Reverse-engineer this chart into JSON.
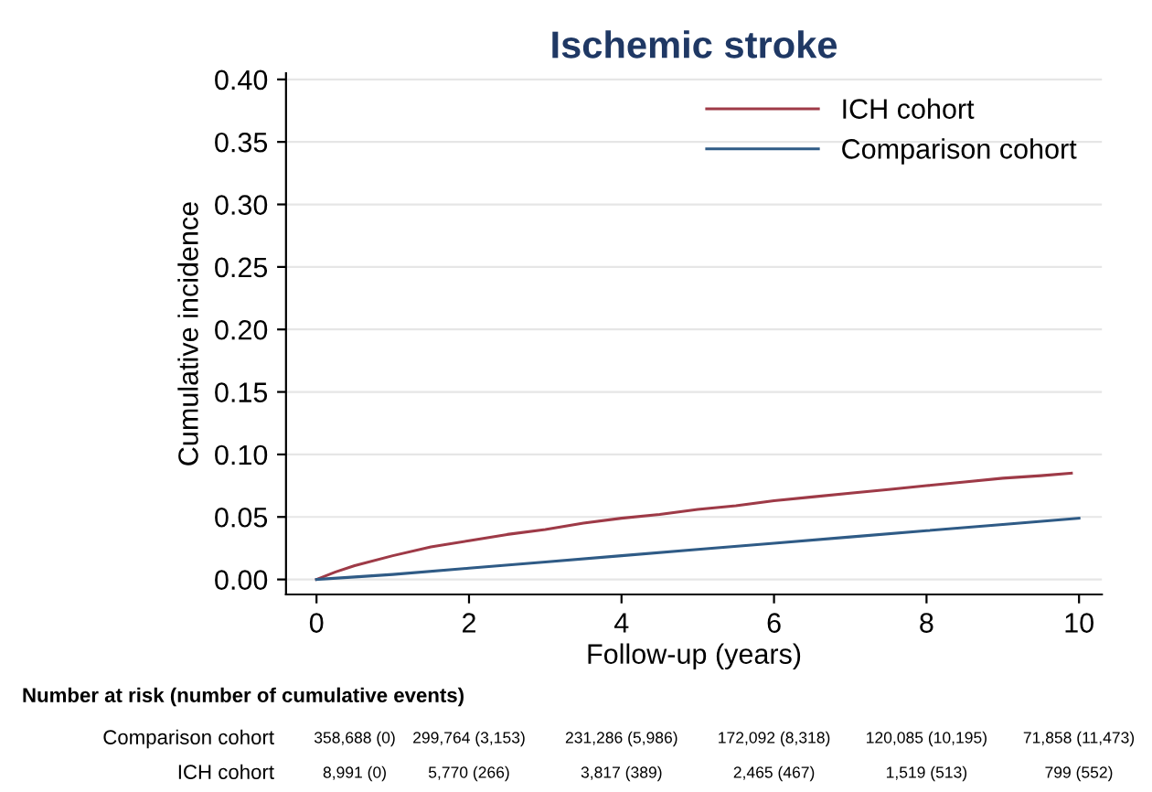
{
  "chart_data": {
    "type": "line",
    "title": "Ischemic stroke",
    "xlabel": "Follow-up (years)",
    "ylabel": "Cumulative incidence",
    "series": [
      {
        "name": "ICH cohort",
        "color": "#9e3a47",
        "x": [
          0,
          0.25,
          0.5,
          1,
          1.5,
          2,
          2.5,
          3,
          3.5,
          4,
          4.5,
          5,
          5.5,
          6,
          6.5,
          7,
          7.5,
          8,
          8.5,
          9,
          9.5,
          9.9
        ],
        "values": [
          0,
          0.006,
          0.011,
          0.019,
          0.026,
          0.031,
          0.036,
          0.04,
          0.045,
          0.049,
          0.052,
          0.056,
          0.059,
          0.063,
          0.066,
          0.069,
          0.072,
          0.075,
          0.078,
          0.081,
          0.083,
          0.085
        ]
      },
      {
        "name": "Comparison cohort",
        "color": "#2f5b86",
        "x": [
          0,
          0.5,
          1,
          2,
          3,
          4,
          5,
          6,
          7,
          8,
          9,
          10
        ],
        "values": [
          0,
          0.002,
          0.004,
          0.009,
          0.014,
          0.019,
          0.024,
          0.029,
          0.034,
          0.039,
          0.044,
          0.049
        ]
      }
    ],
    "xlim": [
      -0.4,
      10.3
    ],
    "ylim": [
      -0.012,
      0.405
    ],
    "xticks": [
      0,
      2,
      4,
      6,
      8,
      10
    ],
    "yticks": [
      {
        "value": 0,
        "label": "0.00"
      },
      {
        "value": 0.05,
        "label": "0.05"
      },
      {
        "value": 0.1,
        "label": "0.10"
      },
      {
        "value": 0.15,
        "label": "0.15"
      },
      {
        "value": 0.2,
        "label": "0.20"
      },
      {
        "value": 0.25,
        "label": "0.25"
      },
      {
        "value": 0.3,
        "label": "0.30"
      },
      {
        "value": 0.35,
        "label": "0.35"
      },
      {
        "value": 0.4,
        "label": "0.40"
      }
    ],
    "grid": "y",
    "legend": "top right",
    "line_style": "solid",
    "annotations": [
      "Number at risk (number of cumulative events)",
      "Comparison cohort",
      "358,688 (0)",
      "299,764 (3,153)",
      "231,286 (5,986)",
      "172,092 (8,318)",
      "120,085 (10,195)",
      "71,858 (11,473)",
      "ICH cohort",
      "8,991 (0)",
      "5,770 (266)",
      "3,817 (389)",
      "2,465 (467)",
      "1,519 (513)",
      "799 (552)"
    ]
  }
}
